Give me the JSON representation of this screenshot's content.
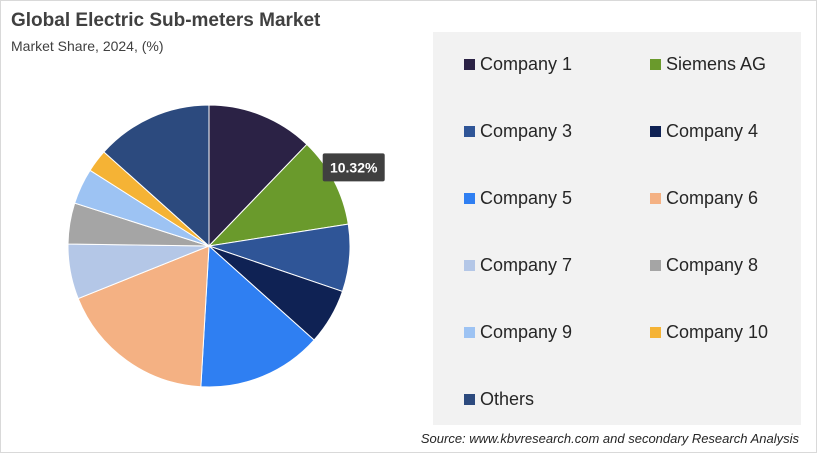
{
  "chart_data": {
    "type": "pie",
    "title": "Global Electric Sub-meters Market",
    "subtitle": "Market Share, 2024, (%)",
    "legend_position": "right",
    "slices": [
      {
        "label": "Company 1",
        "value": 12.2,
        "color": "#2b2245"
      },
      {
        "label": "Siemens AG",
        "value": 10.32,
        "color": "#6a9a2c",
        "data_label": "10.32%"
      },
      {
        "label": "Company 3",
        "value": 7.7,
        "color": "#2f5597"
      },
      {
        "label": "Company 4",
        "value": 6.4,
        "color": "#0f2254"
      },
      {
        "label": "Company 5",
        "value": 14.3,
        "color": "#2f7ff2"
      },
      {
        "label": "Company 6",
        "value": 18.0,
        "color": "#f4b183"
      },
      {
        "label": "Company 7",
        "value": 6.3,
        "color": "#b4c7e7"
      },
      {
        "label": "Company 8",
        "value": 4.7,
        "color": "#a5a5a5"
      },
      {
        "label": "Company 9",
        "value": 4.1,
        "color": "#9dc3f3"
      },
      {
        "label": "Company 10",
        "value": 2.6,
        "color": "#f5b335"
      },
      {
        "label": "Others",
        "value": 13.38,
        "color": "#2c4a7e"
      }
    ],
    "source": "Source: www.kbvresearch.com and secondary Research Analysis"
  }
}
